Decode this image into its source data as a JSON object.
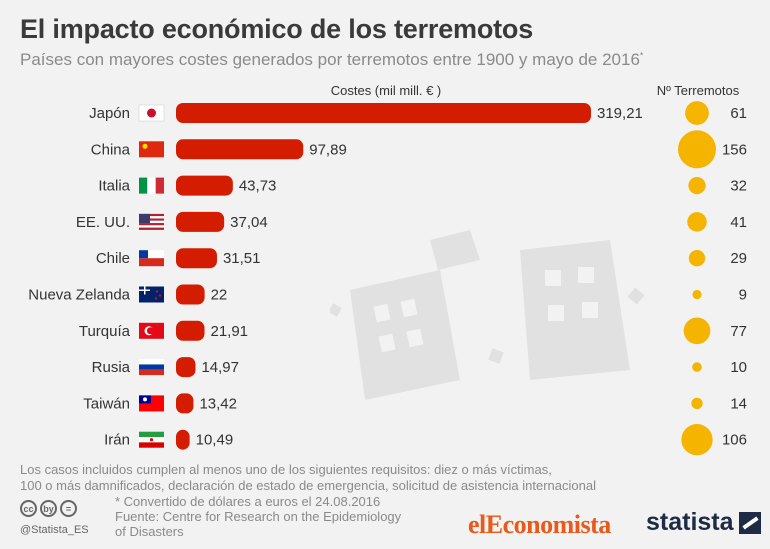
{
  "title": "El impacto económico de los terremotos",
  "subtitle": "Países con mayores costes generados por terremotos entre 1900 y mayo de 2016",
  "subtitle_mark": "*",
  "colors": {
    "bar": "#d31c00",
    "bubble": "#f5b400",
    "text": "#333333",
    "muted": "#8a8a8a"
  },
  "chart_data": {
    "type": "bar",
    "orientation": "horizontal",
    "xlabel": "Costes (mil mill. € )",
    "bubble_label": "Nº Terremotos",
    "categories": [
      "Japón",
      "China",
      "Italia",
      "EE. UU.",
      "Chile",
      "Nueva Zelanda",
      "Turquía",
      "Rusia",
      "Taiwán",
      "Irán"
    ],
    "value_labels": [
      "319,21",
      "97,89",
      "43,73",
      "37,04",
      "31,51",
      "22",
      "21,91",
      "14,97",
      "13,42",
      "10,49"
    ],
    "series": [
      {
        "name": "Costes (mil mill. € )",
        "values": [
          319.21,
          97.89,
          43.73,
          37.04,
          31.51,
          22,
          21.91,
          14.97,
          13.42,
          10.49
        ]
      },
      {
        "name": "Nº Terremotos",
        "values": [
          61,
          156,
          32,
          41,
          29,
          9,
          77,
          10,
          14,
          106
        ]
      }
    ],
    "flags": [
      "japan-flag",
      "china-flag",
      "italy-flag",
      "usa-flag",
      "chile-flag",
      "new-zealand-flag",
      "turkey-flag",
      "russia-flag",
      "taiwan-flag",
      "iran-flag"
    ]
  },
  "footer": {
    "note_line1": "Los casos incluidos cumplen al menos uno de los siguientes requisitos: diez o más víctimas,",
    "note_line2": "100 o más damnificados, declaración de estado de emergencia, solicitud de asistencia internacional",
    "conversion": "* Convertido de dólares a euros el 24.08.2016",
    "source_line1": "Fuente: Centre for Research on the Epidemiology",
    "source_line2": "of Disasters",
    "handle": "@Statista_ES",
    "cc_icons": [
      "cc",
      "by",
      "="
    ]
  },
  "logos": {
    "left": "elEconomista",
    "right": "statista"
  }
}
